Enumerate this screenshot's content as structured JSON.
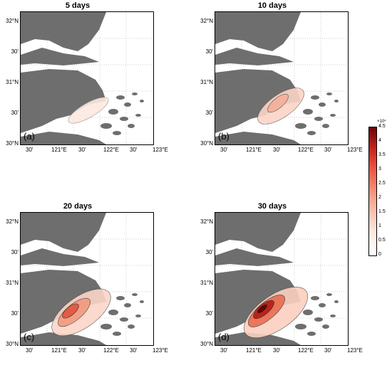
{
  "panels": [
    {
      "title": "5 days",
      "label": "(a)"
    },
    {
      "title": "10 days",
      "label": "(b)"
    },
    {
      "title": "20 days",
      "label": "(c)"
    },
    {
      "title": "30 days",
      "label": "(d)"
    }
  ],
  "lat_ticks": [
    "32°N",
    "30'",
    "31°N",
    "30'",
    "30°N"
  ],
  "lon_ticks": [
    "30'",
    "121°E",
    "30'",
    "122°E",
    "30'",
    "123°E"
  ],
  "colorbar": {
    "scale_label": "×10⁴",
    "ticks": [
      "4.5",
      "4",
      "3.5",
      "3",
      "2.5",
      "2",
      "1.5",
      "1",
      "0.5",
      "0"
    ]
  },
  "colors": {
    "land": "#6e6e6e",
    "water": "#ffffff",
    "high": "#6b0505",
    "low": "#ffffff"
  }
}
